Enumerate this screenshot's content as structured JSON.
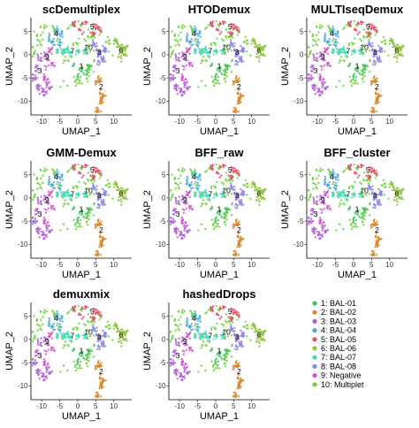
{
  "chart_data": {
    "type": "scatter",
    "panels": [
      {
        "title": "scDemultiplex",
        "xlabel": "UMAP_1",
        "ylabel": "UMAP_2"
      },
      {
        "title": "HTODemux",
        "xlabel": "UMAP_1",
        "ylabel": "UMAP_2"
      },
      {
        "title": "MULTIseqDemux",
        "xlabel": "UMAP_1",
        "ylabel": "UMAP_2"
      },
      {
        "title": "GMM-Demux",
        "xlabel": "UMAP_1",
        "ylabel": "UMAP_2"
      },
      {
        "title": "BFF_raw",
        "xlabel": "UMAP_1",
        "ylabel": "UMAP_2"
      },
      {
        "title": "BFF_cluster",
        "xlabel": "UMAP_1",
        "ylabel": "UMAP_2"
      },
      {
        "title": "demuxmix",
        "xlabel": "UMAP_1",
        "ylabel": "UMAP_2"
      },
      {
        "title": "hashedDrops",
        "xlabel": "UMAP_1",
        "ylabel": "UMAP_2"
      }
    ],
    "xlim": [
      -13,
      15
    ],
    "ylim": [
      -13,
      8
    ],
    "xticks": [
      -10,
      -5,
      0,
      5,
      10
    ],
    "yticks": [
      5,
      0,
      -5,
      -10
    ],
    "clusters": [
      {
        "id": "1",
        "name": "BAL-01",
        "color": "#39c55a",
        "label_at": [
          1,
          -3
        ]
      },
      {
        "id": "2",
        "name": "BAL-02",
        "color": "#d88a28",
        "label_at": [
          6.5,
          -7.5
        ]
      },
      {
        "id": "3",
        "name": "BAL-03",
        "color": "#b05fd6",
        "label_at": [
          -10.5,
          -4
        ]
      },
      {
        "id": "4",
        "name": "BAL-04",
        "color": "#4fa9d8",
        "label_at": [
          -6,
          4
        ]
      },
      {
        "id": "5",
        "name": "BAL-05",
        "color": "#e24e67",
        "label_at": [
          4,
          5.5
        ]
      },
      {
        "id": "6",
        "name": "BAL-06",
        "color": "#8ec33b",
        "label_at": [
          12,
          0.5
        ]
      },
      {
        "id": "7",
        "name": "BAL-07",
        "color": "#49d9b0",
        "label_at": [
          -1.5,
          0.3
        ]
      },
      {
        "id": "8",
        "name": "BAL-08",
        "color": "#8b86e8",
        "label_at": [
          6,
          0
        ]
      },
      {
        "id": "9",
        "name": "Negative",
        "color": "#d354c9",
        "label_at": [
          -8.5,
          -1
        ]
      },
      {
        "id": "10",
        "name": "Multiplet",
        "color": "#6bd436",
        "label_at": [
          3,
          1
        ]
      }
    ],
    "legend_position": "bottom-right"
  }
}
